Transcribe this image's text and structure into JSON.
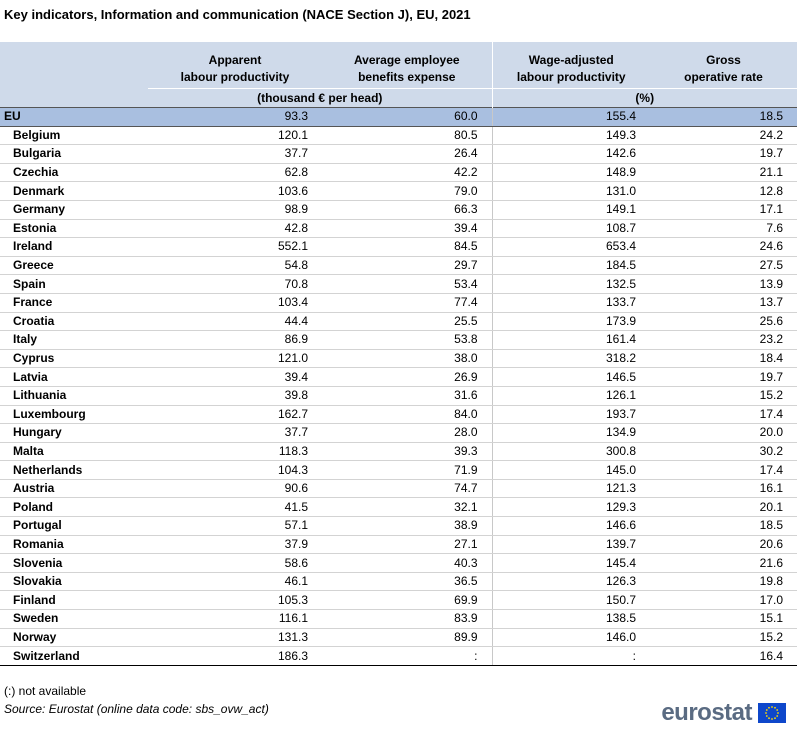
{
  "title": "Key indicators, Information and communication (NACE Section J), EU, 2021",
  "headers": {
    "col1": [
      "Apparent",
      "labour productivity"
    ],
    "col2": [
      "Average employee",
      "benefits expense"
    ],
    "col3": [
      "Wage-adjusted",
      "labour productivity"
    ],
    "col4": [
      "Gross",
      "operative rate"
    ],
    "unit_money": "(thousand € per head)",
    "unit_percent": "(%)"
  },
  "rows": [
    {
      "name": "EU",
      "v": [
        "93.3",
        "60.0",
        "155.4",
        "18.5"
      ]
    },
    {
      "name": "Belgium",
      "v": [
        "120.1",
        "80.5",
        "149.3",
        "24.2"
      ]
    },
    {
      "name": "Bulgaria",
      "v": [
        "37.7",
        "26.4",
        "142.6",
        "19.7"
      ]
    },
    {
      "name": "Czechia",
      "v": [
        "62.8",
        "42.2",
        "148.9",
        "21.1"
      ]
    },
    {
      "name": "Denmark",
      "v": [
        "103.6",
        "79.0",
        "131.0",
        "12.8"
      ]
    },
    {
      "name": "Germany",
      "v": [
        "98.9",
        "66.3",
        "149.1",
        "17.1"
      ]
    },
    {
      "name": "Estonia",
      "v": [
        "42.8",
        "39.4",
        "108.7",
        "7.6"
      ]
    },
    {
      "name": "Ireland",
      "v": [
        "552.1",
        "84.5",
        "653.4",
        "24.6"
      ]
    },
    {
      "name": "Greece",
      "v": [
        "54.8",
        "29.7",
        "184.5",
        "27.5"
      ]
    },
    {
      "name": "Spain",
      "v": [
        "70.8",
        "53.4",
        "132.5",
        "13.9"
      ]
    },
    {
      "name": "France",
      "v": [
        "103.4",
        "77.4",
        "133.7",
        "13.7"
      ]
    },
    {
      "name": "Croatia",
      "v": [
        "44.4",
        "25.5",
        "173.9",
        "25.6"
      ]
    },
    {
      "name": "Italy",
      "v": [
        "86.9",
        "53.8",
        "161.4",
        "23.2"
      ]
    },
    {
      "name": "Cyprus",
      "v": [
        "121.0",
        "38.0",
        "318.2",
        "18.4"
      ]
    },
    {
      "name": "Latvia",
      "v": [
        "39.4",
        "26.9",
        "146.5",
        "19.7"
      ]
    },
    {
      "name": "Lithuania",
      "v": [
        "39.8",
        "31.6",
        "126.1",
        "15.2"
      ]
    },
    {
      "name": "Luxembourg",
      "v": [
        "162.7",
        "84.0",
        "193.7",
        "17.4"
      ]
    },
    {
      "name": "Hungary",
      "v": [
        "37.7",
        "28.0",
        "134.9",
        "20.0"
      ]
    },
    {
      "name": "Malta",
      "v": [
        "118.3",
        "39.3",
        "300.8",
        "30.2"
      ]
    },
    {
      "name": "Netherlands",
      "v": [
        "104.3",
        "71.9",
        "145.0",
        "17.4"
      ]
    },
    {
      "name": "Austria",
      "v": [
        "90.6",
        "74.7",
        "121.3",
        "16.1"
      ]
    },
    {
      "name": "Poland",
      "v": [
        "41.5",
        "32.1",
        "129.3",
        "20.1"
      ]
    },
    {
      "name": "Portugal",
      "v": [
        "57.1",
        "38.9",
        "146.6",
        "18.5"
      ]
    },
    {
      "name": "Romania",
      "v": [
        "37.9",
        "27.1",
        "139.7",
        "20.6"
      ]
    },
    {
      "name": "Slovenia",
      "v": [
        "58.6",
        "40.3",
        "145.4",
        "21.6"
      ]
    },
    {
      "name": "Slovakia",
      "v": [
        "46.1",
        "36.5",
        "126.3",
        "19.8"
      ]
    },
    {
      "name": "Finland",
      "v": [
        "105.3",
        "69.9",
        "150.7",
        "17.0"
      ]
    },
    {
      "name": "Sweden",
      "v": [
        "116.1",
        "83.9",
        "138.5",
        "15.1"
      ]
    },
    {
      "name": "Norway",
      "v": [
        "131.3",
        "89.9",
        "146.0",
        "15.2"
      ]
    },
    {
      "name": "Switzerland",
      "v": [
        "186.3",
        ":",
        ":",
        "16.4"
      ]
    }
  ],
  "footnote": "(:) not available",
  "source": "Source: Eurostat (online data code: sbs_ovw_act)",
  "logo_text": "eurostat",
  "colors": {
    "header_bg": "#cfdaea",
    "eu_row_bg": "#a9bfe0",
    "logo_text": "#5a6b82",
    "flag_blue": "#0e47cb",
    "flag_star": "#ffdd00"
  }
}
